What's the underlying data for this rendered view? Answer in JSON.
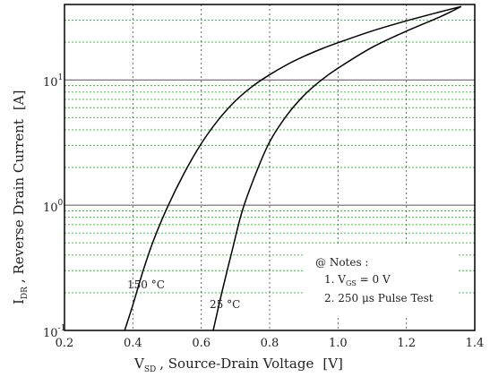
{
  "chart_data": {
    "type": "line",
    "title": "",
    "xlabel": {
      "symbol": "V",
      "subscript": "SD",
      "text": ", Source-Drain Voltage",
      "unit": "[V]"
    },
    "ylabel": {
      "symbol": "I",
      "subscript": "DR",
      "text": ", Reverse Drain Current",
      "unit": "[A]"
    },
    "xlim": [
      0.2,
      1.4
    ],
    "ylim": [
      0.1,
      40
    ],
    "yscale": "log",
    "grid": true,
    "x_ticks": [
      "0.2",
      "0.4",
      "0.6",
      "0.8",
      "1.0",
      "1.2",
      "1.4"
    ],
    "y_ticks": [
      {
        "base": "10",
        "exp": "-1",
        "value": 0.1
      },
      {
        "base": "10",
        "exp": "0",
        "value": 1
      },
      {
        "base": "10",
        "exp": "1",
        "value": 10
      }
    ],
    "series": [
      {
        "name": "150 °C",
        "x": [
          0.376,
          0.4,
          0.43,
          0.46,
          0.5,
          0.55,
          0.6,
          0.65,
          0.7,
          0.75,
          0.8,
          0.85,
          0.9,
          0.95,
          1.0,
          1.1,
          1.2,
          1.3,
          1.36
        ],
        "y": [
          0.1,
          0.16,
          0.3,
          0.52,
          0.95,
          1.8,
          3.1,
          4.8,
          6.8,
          8.9,
          11.0,
          13.2,
          15.4,
          17.6,
          19.8,
          24.6,
          29.6,
          35.0,
          38.5
        ]
      },
      {
        "name": "25 °C",
        "x": [
          0.635,
          0.66,
          0.69,
          0.72,
          0.76,
          0.8,
          0.85,
          0.9,
          0.95,
          1.0,
          1.1,
          1.2,
          1.3,
          1.36
        ],
        "y": [
          0.1,
          0.2,
          0.43,
          0.9,
          1.8,
          3.2,
          5.2,
          7.5,
          9.9,
          12.4,
          18.2,
          24.5,
          32.0,
          38.5
        ]
      }
    ],
    "notes": {
      "header": "@ Notes :",
      "line1": {
        "prefix": "1. V",
        "sub": "GS",
        "suffix": " = 0 V"
      },
      "line2": "2. 250 μs Pulse Test"
    },
    "colors": {
      "curve": "#000000",
      "minor_grid": "#2bbf2b",
      "major_grid": "#555555",
      "vertical_grid": "#555555"
    }
  }
}
